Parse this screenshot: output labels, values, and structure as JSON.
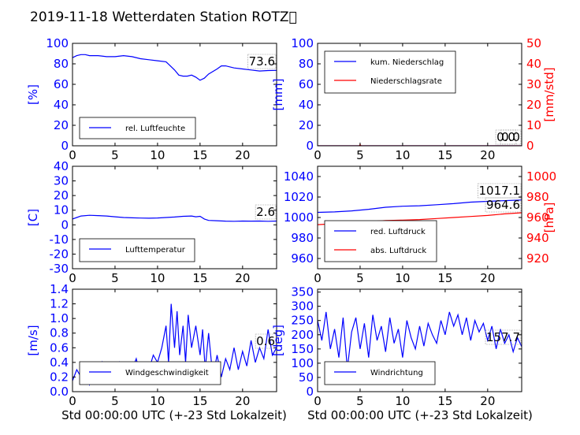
{
  "title": "2019-11-18 Wetterdaten Station ROTZ\u0000",
  "xlabel": "Std 00:00:00 UTC (+-23 Std Lokalzeit)",
  "colors": {
    "primary": "#0000ff",
    "secondary": "#ff0000"
  },
  "chart_data": [
    {
      "id": "humidity",
      "type": "line",
      "xlim": [
        0,
        24
      ],
      "xticks": [
        0,
        5,
        10,
        15,
        20
      ],
      "ylim": [
        0,
        100
      ],
      "yticks": [
        0,
        20,
        40,
        60,
        80,
        100
      ],
      "ylabel": "[%]",
      "legend": {
        "placement": "lower-left",
        "entries": [
          {
            "label": "rel. Luftfeuchte",
            "color": "#0000ff"
          }
        ]
      },
      "annotations": [
        "73.6"
      ],
      "series": [
        {
          "name": "rel. Luftfeuchte",
          "color": "#0000ff",
          "x": [
            0,
            0.5,
            1,
            1.5,
            2,
            3,
            4,
            5,
            6,
            7,
            8,
            9,
            10,
            11,
            11.5,
            12,
            12.5,
            13,
            13.5,
            14,
            14.5,
            15,
            15.5,
            16,
            17,
            17.5,
            18,
            19,
            20,
            21,
            22,
            23,
            24
          ],
          "y": [
            86,
            88,
            89,
            89,
            88,
            88,
            87,
            87,
            88,
            87,
            85,
            84,
            83,
            82,
            78,
            74,
            69,
            68,
            68,
            69,
            67,
            64,
            66,
            70,
            75,
            78,
            78,
            76,
            75,
            74,
            73,
            73.5,
            73.6
          ]
        }
      ]
    },
    {
      "id": "precip",
      "type": "line",
      "xlim": [
        0,
        24
      ],
      "xticks": [
        0,
        5,
        10,
        15,
        20
      ],
      "ylim": [
        0,
        100
      ],
      "yticks": [
        0,
        20,
        40,
        60,
        80,
        100
      ],
      "ylabel": "[mm]",
      "y2lim": [
        0,
        50
      ],
      "y2ticks": [
        0,
        10,
        20,
        30,
        40,
        50
      ],
      "y2label": "[mm/std]",
      "legend": {
        "placement": "top-left",
        "entries": [
          {
            "label": "kum. Niederschlag",
            "color": "#0000ff"
          },
          {
            "label": "Niederschlagsrate",
            "color": "#ff0000"
          }
        ]
      },
      "annotations": [
        "0.0",
        "0.0"
      ],
      "series": [
        {
          "name": "kum. Niederschlag",
          "color": "#0000ff",
          "axis": "left",
          "x": [
            0,
            24
          ],
          "y": [
            0,
            0
          ]
        },
        {
          "name": "Niederschlagsrate",
          "color": "#ff0000",
          "axis": "right",
          "x": [
            0,
            4.9,
            5,
            5.1,
            24
          ],
          "y": [
            0,
            0,
            0.6,
            0,
            0
          ]
        }
      ]
    },
    {
      "id": "temperature",
      "type": "line",
      "xlim": [
        0,
        24
      ],
      "xticks": [
        0,
        5,
        10,
        15,
        20
      ],
      "ylim": [
        -30,
        40
      ],
      "yticks": [
        -30,
        -20,
        -10,
        0,
        10,
        20,
        30,
        40
      ],
      "ylabel": "[C]",
      "legend": {
        "placement": "lower-left",
        "entries": [
          {
            "label": "Lufttemperatur",
            "color": "#0000ff"
          }
        ]
      },
      "annotations": [
        "2.6"
      ],
      "series": [
        {
          "name": "Lufttemperatur",
          "color": "#0000ff",
          "x": [
            0,
            0.5,
            1,
            2,
            3,
            4,
            5,
            6,
            7,
            8,
            9,
            10,
            11,
            12,
            13,
            14,
            14.5,
            15,
            15.5,
            16,
            17,
            18,
            19,
            20,
            21,
            22,
            23,
            24
          ],
          "y": [
            4,
            5,
            6,
            6.5,
            6.3,
            6,
            5.5,
            5,
            4.8,
            4.6,
            4.5,
            4.7,
            5,
            5.3,
            5.8,
            6,
            5.5,
            5.8,
            4,
            3,
            2.8,
            2.5,
            2.4,
            2.6,
            2.5,
            2.6,
            2.4,
            2.6
          ]
        }
      ]
    },
    {
      "id": "pressure",
      "type": "line",
      "xlim": [
        0,
        24
      ],
      "xticks": [
        0,
        5,
        10,
        15,
        20
      ],
      "ylim": [
        950,
        1050
      ],
      "yticks": [
        960,
        980,
        1000,
        1020,
        1040
      ],
      "y2lim": [
        910,
        1010
      ],
      "y2ticks": [
        920,
        940,
        960,
        980,
        1000
      ],
      "y2label": "[hPa]",
      "legend": {
        "placement": "lower-left",
        "entries": [
          {
            "label": "red. Luftdruck",
            "color": "#0000ff"
          },
          {
            "label": "abs. Luftdruck",
            "color": "#ff0000"
          }
        ]
      },
      "annotations": [
        "1017.1",
        "964.6"
      ],
      "series": [
        {
          "name": "red. Luftdruck",
          "color": "#0000ff",
          "axis": "left",
          "x": [
            0,
            2,
            4,
            6,
            8,
            10,
            12,
            14,
            16,
            18,
            20,
            22,
            24
          ],
          "y": [
            1005,
            1005.5,
            1006.5,
            1008,
            1010,
            1011,
            1011.5,
            1012.5,
            1013.5,
            1015,
            1015.8,
            1016.5,
            1017.1
          ]
        },
        {
          "name": "abs. Luftdruck",
          "color": "#ff0000",
          "axis": "right",
          "x": [
            0,
            2,
            4,
            6,
            8,
            10,
            12,
            14,
            16,
            18,
            20,
            22,
            24
          ],
          "y": [
            953,
            954,
            955,
            956,
            957,
            957.5,
            958,
            959,
            960,
            961,
            962,
            963.5,
            964.6
          ]
        }
      ]
    },
    {
      "id": "windspeed",
      "type": "line",
      "xlim": [
        0,
        24
      ],
      "xticks": [
        0,
        5,
        10,
        15,
        20
      ],
      "ylim": [
        0,
        1.4
      ],
      "yticks": [
        0.0,
        0.2,
        0.4,
        0.6,
        0.8,
        1.0,
        1.2,
        1.4
      ],
      "ylabel": "[m/s]",
      "legend": {
        "placement": "lower-left",
        "entries": [
          {
            "label": "Windgeschwindigkeit",
            "color": "#0000ff"
          }
        ]
      },
      "annotations": [
        "0.6"
      ],
      "series": [
        {
          "name": "Windgeschwindigkeit",
          "color": "#0000ff",
          "x": [
            0,
            0.5,
            1,
            1.5,
            2,
            2.5,
            3,
            3.5,
            4,
            4.5,
            5,
            5.5,
            6,
            6.5,
            7,
            7.5,
            8,
            8.5,
            9,
            9.5,
            10,
            10.5,
            11,
            11.3,
            11.6,
            12,
            12.3,
            12.6,
            13,
            13.3,
            13.6,
            14,
            14.5,
            15,
            15.3,
            15.6,
            16,
            16.5,
            17,
            17.5,
            18,
            18.5,
            19,
            19.5,
            20,
            20.5,
            21,
            21.5,
            22,
            22.5,
            23,
            23.5,
            24
          ],
          "y": [
            0.15,
            0.3,
            0.2,
            0.35,
            0.1,
            0.3,
            0.2,
            0.4,
            0.15,
            0.3,
            0.25,
            0.4,
            0.2,
            0.35,
            0.3,
            0.45,
            0.2,
            0.35,
            0.3,
            0.5,
            0.4,
            0.6,
            0.9,
            0.4,
            1.2,
            0.6,
            1.1,
            0.5,
            0.9,
            0.4,
            1.05,
            0.6,
            0.9,
            0.5,
            0.85,
            0.3,
            0.8,
            0.2,
            0.5,
            0.2,
            0.45,
            0.3,
            0.6,
            0.3,
            0.55,
            0.35,
            0.7,
            0.4,
            0.6,
            0.45,
            0.85,
            0.5,
            0.6
          ]
        }
      ]
    },
    {
      "id": "winddir",
      "type": "line",
      "xlim": [
        0,
        24
      ],
      "xticks": [
        0,
        5,
        10,
        15,
        20
      ],
      "ylim": [
        0,
        360
      ],
      "yticks": [
        0,
        50,
        100,
        150,
        200,
        250,
        300,
        350
      ],
      "ylabel": "[deg]",
      "legend": {
        "placement": "lower-left",
        "entries": [
          {
            "label": "Windrichtung",
            "color": "#0000ff"
          }
        ]
      },
      "annotations": [
        "157.7"
      ],
      "series": [
        {
          "name": "Windrichtung",
          "color": "#0000ff",
          "x": [
            0,
            0.5,
            1,
            1.5,
            2,
            2.5,
            3,
            3.5,
            4,
            4.5,
            5,
            5.5,
            6,
            6.5,
            7,
            7.5,
            8,
            8.5,
            9,
            9.5,
            10,
            10.5,
            11,
            11.5,
            12,
            12.5,
            13,
            13.5,
            14,
            14.5,
            15,
            15.5,
            16,
            16.5,
            17,
            17.5,
            18,
            18.5,
            19,
            19.5,
            20,
            20.5,
            21,
            21.5,
            22,
            22.5,
            23,
            23.5,
            24
          ],
          "y": [
            250,
            180,
            280,
            150,
            220,
            120,
            260,
            80,
            210,
            260,
            150,
            240,
            120,
            270,
            180,
            230,
            140,
            260,
            170,
            220,
            120,
            250,
            190,
            150,
            230,
            160,
            240,
            200,
            170,
            250,
            200,
            280,
            230,
            270,
            200,
            260,
            180,
            250,
            210,
            240,
            180,
            230,
            150,
            220,
            170,
            200,
            140,
            190,
            158
          ]
        }
      ]
    }
  ]
}
